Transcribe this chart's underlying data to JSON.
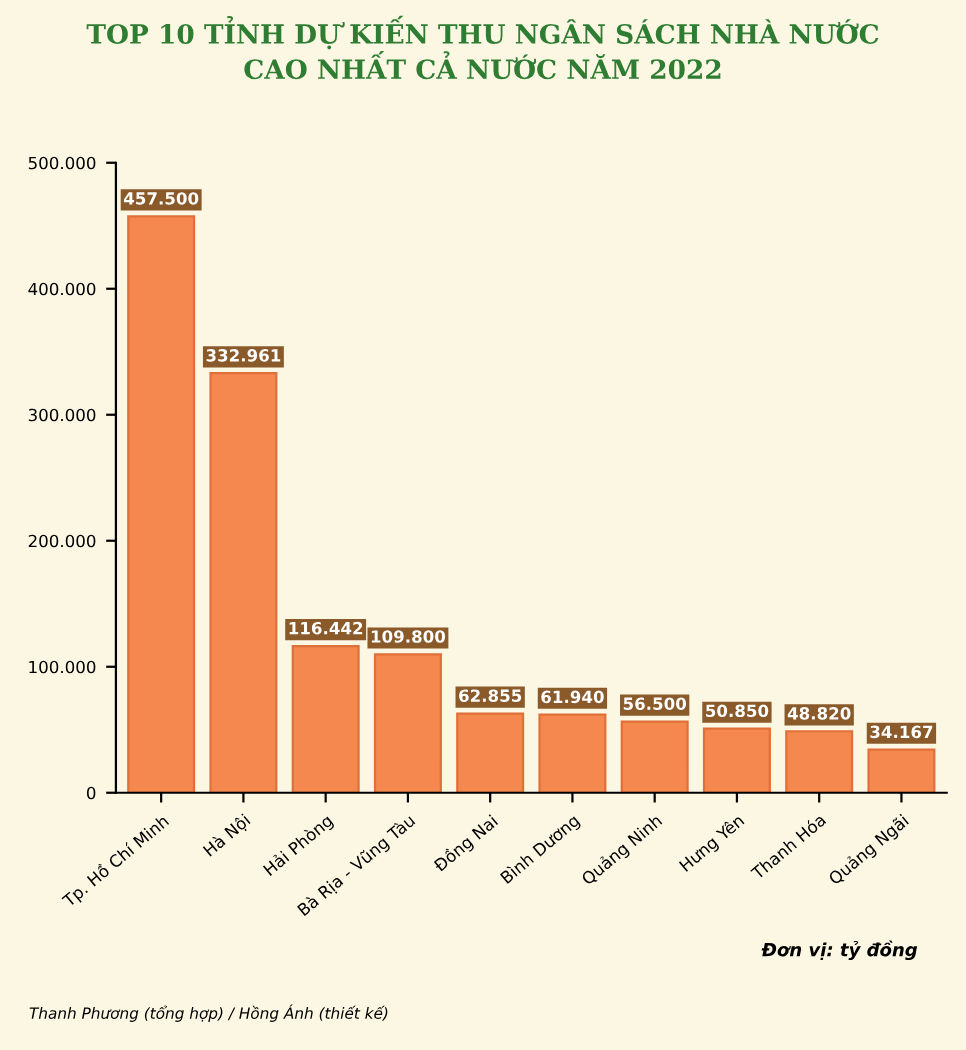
{
  "chart_data": {
    "type": "bar",
    "title": "TOP 10 TỈNH DỰ KIẾN THU NGÂN SÁCH NHÀ NƯỚC\nCAO NHẤT CẢ NƯỚC NĂM 2022",
    "categories": [
      "Tp. Hồ Chí Minh",
      "Hà Nội",
      "Hải Phòng",
      "Bà Rịa - Vũng Tàu",
      "Đồng Nai",
      "Bình Dương",
      "Quảng Ninh",
      "Hưng Yên",
      "Thanh Hóa",
      "Quảng Ngãi"
    ],
    "values": [
      457500,
      332961,
      116442,
      109800,
      62855,
      61940,
      56500,
      50850,
      48820,
      34167
    ],
    "value_labels": [
      "457.500",
      "332.961",
      "116.442",
      "109.800",
      "62.855",
      "61.940",
      "56.500",
      "50.850",
      "48.820",
      "34.167"
    ],
    "color": "#f4884e",
    "ylim": [
      0,
      500000
    ],
    "yticks": [
      0,
      {
        "value": 100000,
        "label": "100.000"
      },
      {
        "value": 200000,
        "label": "200.000"
      },
      {
        "value": 300000,
        "label": "300.000"
      },
      {
        "value": 400000,
        "label": "400.000"
      },
      {
        "value": 500000,
        "label": "500.000"
      }
    ],
    "grid": false,
    "legend": false,
    "annotations": [
      "Đơn vị: tỷ đồng",
      "Thanh Phương (tổng hợp) / Hồng Ánh (thiết kế)"
    ]
  }
}
